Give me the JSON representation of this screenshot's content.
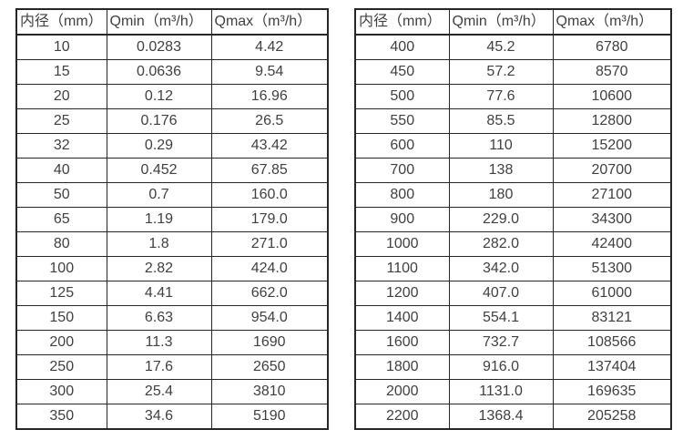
{
  "page": {
    "background": "#ffffff",
    "border_color": "#262626",
    "text_color": "#404040"
  },
  "tables": [
    {
      "name": "small-diameter-flow-table",
      "headers": [
        "内径（mm）",
        "Qmin（m³/h）",
        "Qmax（m³/h）"
      ],
      "rows": [
        [
          "10",
          "0.0283",
          "4.42"
        ],
        [
          "15",
          "0.0636",
          "9.54"
        ],
        [
          "20",
          "0.12",
          "16.96"
        ],
        [
          "25",
          "0.176",
          "26.5"
        ],
        [
          "32",
          "0.29",
          "43.42"
        ],
        [
          "40",
          "0.452",
          "67.85"
        ],
        [
          "50",
          "0.7",
          "160.0"
        ],
        [
          "65",
          "1.19",
          "179.0"
        ],
        [
          "80",
          "1.8",
          "271.0"
        ],
        [
          "100",
          "2.82",
          "424.0"
        ],
        [
          "125",
          "4.41",
          "662.0"
        ],
        [
          "150",
          "6.63",
          "954.0"
        ],
        [
          "200",
          "11.3",
          "1690"
        ],
        [
          "250",
          "17.6",
          "2650"
        ],
        [
          "300",
          "25.4",
          "3810"
        ],
        [
          "350",
          "34.6",
          "5190"
        ]
      ]
    },
    {
      "name": "large-diameter-flow-table",
      "headers": [
        "内径（mm）",
        "Qmin（m³/h）",
        "Qmax（m³/h）"
      ],
      "rows": [
        [
          "400",
          "45.2",
          "6780"
        ],
        [
          "450",
          "57.2",
          "8570"
        ],
        [
          "500",
          "77.6",
          "10600"
        ],
        [
          "550",
          "85.5",
          "12800"
        ],
        [
          "600",
          "110",
          "15200"
        ],
        [
          "700",
          "138",
          "20700"
        ],
        [
          "800",
          "180",
          "27100"
        ],
        [
          "900",
          "229.0",
          "34300"
        ],
        [
          "1000",
          "282.0",
          "42400"
        ],
        [
          "1100",
          "342.0",
          "51300"
        ],
        [
          "1200",
          "407.0",
          "61000"
        ],
        [
          "1400",
          "554.1",
          "83121"
        ],
        [
          "1600",
          "732.7",
          "108566"
        ],
        [
          "1800",
          "916.0",
          "137404"
        ],
        [
          "2000",
          "1131.0",
          "169635"
        ],
        [
          "2200",
          "1368.4",
          "205258"
        ]
      ]
    }
  ]
}
